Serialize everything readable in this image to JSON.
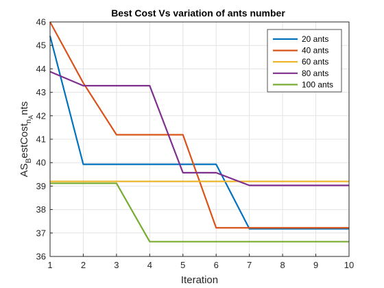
{
  "chart_data": {
    "type": "line",
    "title": "Best Cost Vs variation of ants number",
    "xlabel": "Iteration",
    "ylabel": {
      "t1": "AS",
      "s1": "B",
      "t2": "estCost",
      "s2": "n",
      "s3": "A",
      "t3": "nts"
    },
    "xlim": [
      1,
      10
    ],
    "ylim": [
      36,
      46
    ],
    "xticks": [
      1,
      2,
      3,
      4,
      5,
      6,
      7,
      8,
      9,
      10
    ],
    "yticks": [
      36,
      37,
      38,
      39,
      40,
      41,
      42,
      43,
      44,
      45,
      46
    ],
    "grid": true,
    "legend_position": "top-right",
    "x": [
      1,
      2,
      3,
      4,
      5,
      6,
      7,
      8,
      9,
      10
    ],
    "series": [
      {
        "name": "20 ants",
        "color": "#0072BD",
        "values": [
          45.4,
          39.93,
          39.93,
          39.93,
          39.93,
          39.93,
          37.18,
          37.18,
          37.18,
          37.18
        ]
      },
      {
        "name": "40 ants",
        "color": "#D95319",
        "values": [
          46.0,
          43.4,
          41.19,
          41.19,
          41.19,
          37.22,
          37.22,
          37.22,
          37.22,
          37.22
        ]
      },
      {
        "name": "60 ants",
        "color": "#EDB120",
        "values": [
          39.2,
          39.2,
          39.2,
          39.2,
          39.2,
          39.2,
          39.2,
          39.2,
          39.2,
          39.2
        ]
      },
      {
        "name": "80 ants",
        "color": "#7E2F8E",
        "values": [
          43.88,
          43.28,
          43.28,
          43.28,
          39.57,
          39.57,
          39.03,
          39.03,
          39.03,
          39.03
        ]
      },
      {
        "name": "100 ants",
        "color": "#77AC30",
        "values": [
          39.12,
          39.12,
          39.12,
          36.63,
          36.63,
          36.63,
          36.63,
          36.63,
          36.63,
          36.63
        ]
      }
    ]
  }
}
